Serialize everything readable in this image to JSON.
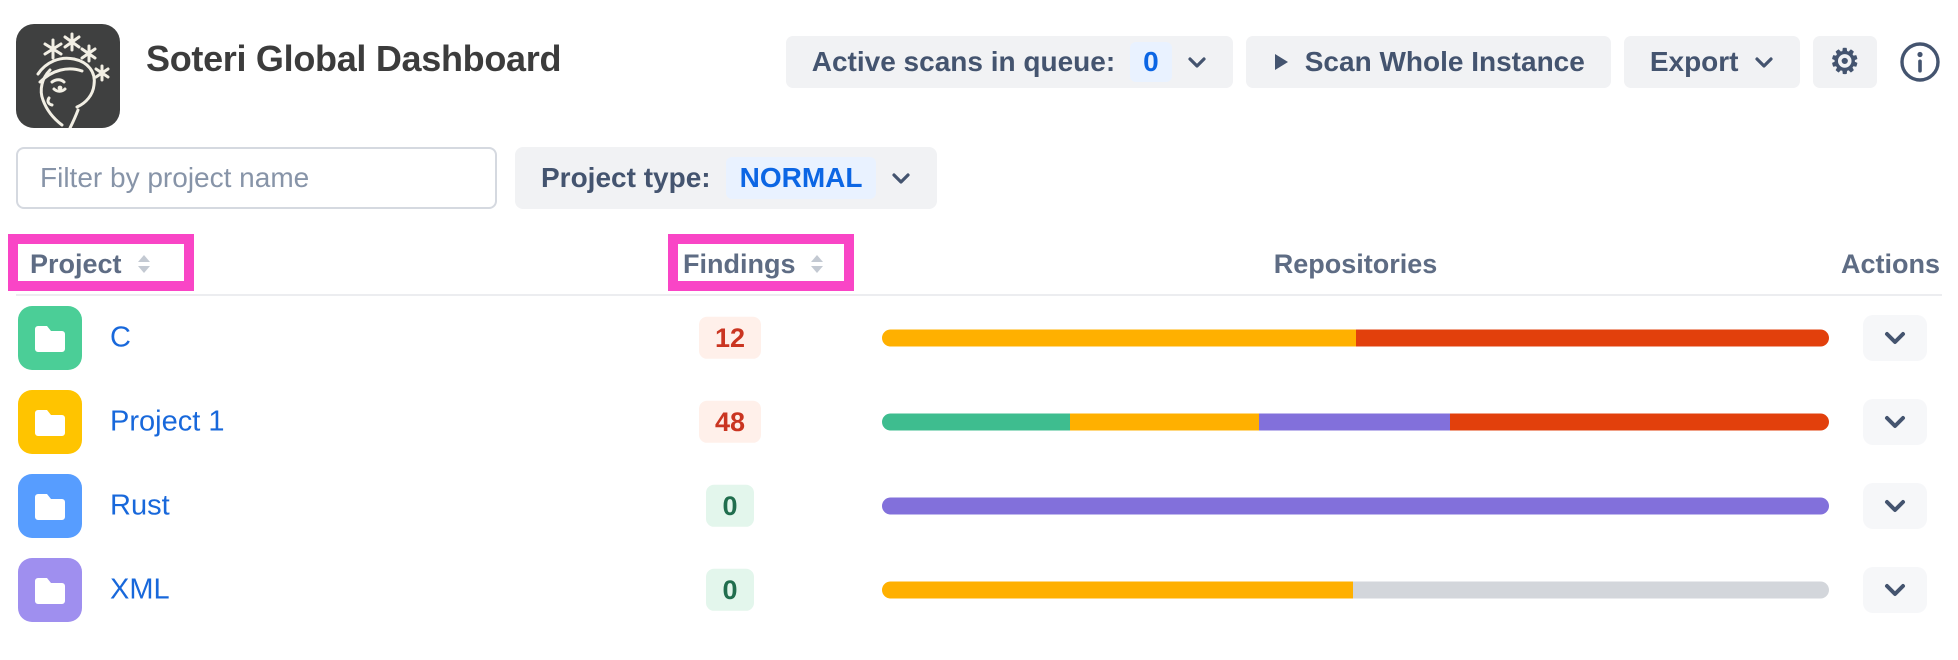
{
  "header": {
    "title": "Soteri Global Dashboard",
    "active_scans": {
      "label": "Active scans in queue:",
      "count": "0"
    },
    "scan_whole_instance_label": "Scan Whole Instance",
    "export_label": "Export",
    "icons": {
      "gear": "⚙"
    }
  },
  "filters": {
    "project_filter_placeholder": "Filter by project name",
    "project_type_label": "Project type:",
    "project_type_value": "NORMAL"
  },
  "table": {
    "columns": [
      {
        "key": "project",
        "label": "Project",
        "sortable": true,
        "annotated": true
      },
      {
        "key": "findings",
        "label": "Findings",
        "sortable": true,
        "annotated": true
      },
      {
        "key": "repositories",
        "label": "Repositories",
        "sortable": false,
        "annotated": false
      },
      {
        "key": "actions",
        "label": "Actions",
        "sortable": false,
        "annotated": false
      }
    ],
    "rows": [
      {
        "project": "C",
        "avatar_color": "#4BCE97",
        "findings": "12",
        "findings_style": {
          "text": "#CA3521",
          "bg": "#FFF0EA"
        },
        "repo_segments": [
          {
            "status": "warning",
            "color": "#FFB000",
            "pct": 50
          },
          {
            "status": "danger",
            "color": "#E2400C",
            "pct": 50
          }
        ]
      },
      {
        "project": "Project 1",
        "avatar_color": "#FFC400",
        "findings": "48",
        "findings_style": {
          "text": "#CA3521",
          "bg": "#FFF0EA"
        },
        "repo_segments": [
          {
            "status": "ok",
            "color": "#3EBD8F",
            "pct": 19.8
          },
          {
            "status": "warning",
            "color": "#FFB000",
            "pct": 20
          },
          {
            "status": "scanning",
            "color": "#8270DB",
            "pct": 20.2
          },
          {
            "status": "danger",
            "color": "#E2400C",
            "pct": 40
          }
        ]
      },
      {
        "project": "Rust",
        "avatar_color": "#579DFF",
        "findings": "0",
        "findings_style": {
          "text": "#216E4E",
          "bg": "#E3F6EC"
        },
        "repo_segments": [
          {
            "status": "scanning",
            "color": "#8270DB",
            "pct": 100
          }
        ]
      },
      {
        "project": "XML",
        "avatar_color": "#9F8FEF",
        "findings": "0",
        "findings_style": {
          "text": "#216E4E",
          "bg": "#E3F6EC"
        },
        "repo_segments": [
          {
            "status": "warning",
            "color": "#FFB000",
            "pct": 49.7
          },
          {
            "status": "not-scanned",
            "color": "#D3D6DB",
            "pct": 50.3
          }
        ]
      }
    ]
  },
  "annotations": {
    "highlight_color": "#F945C6",
    "highlighted_columns": [
      "Project",
      "Findings"
    ]
  },
  "colors": {
    "accent_blue": "#0C66E4",
    "blue_pill_bg": "#E9F2FF",
    "button_bg": "#F1F2F4",
    "slate_text": "#44546F",
    "link_blue": "#1868DB"
  }
}
